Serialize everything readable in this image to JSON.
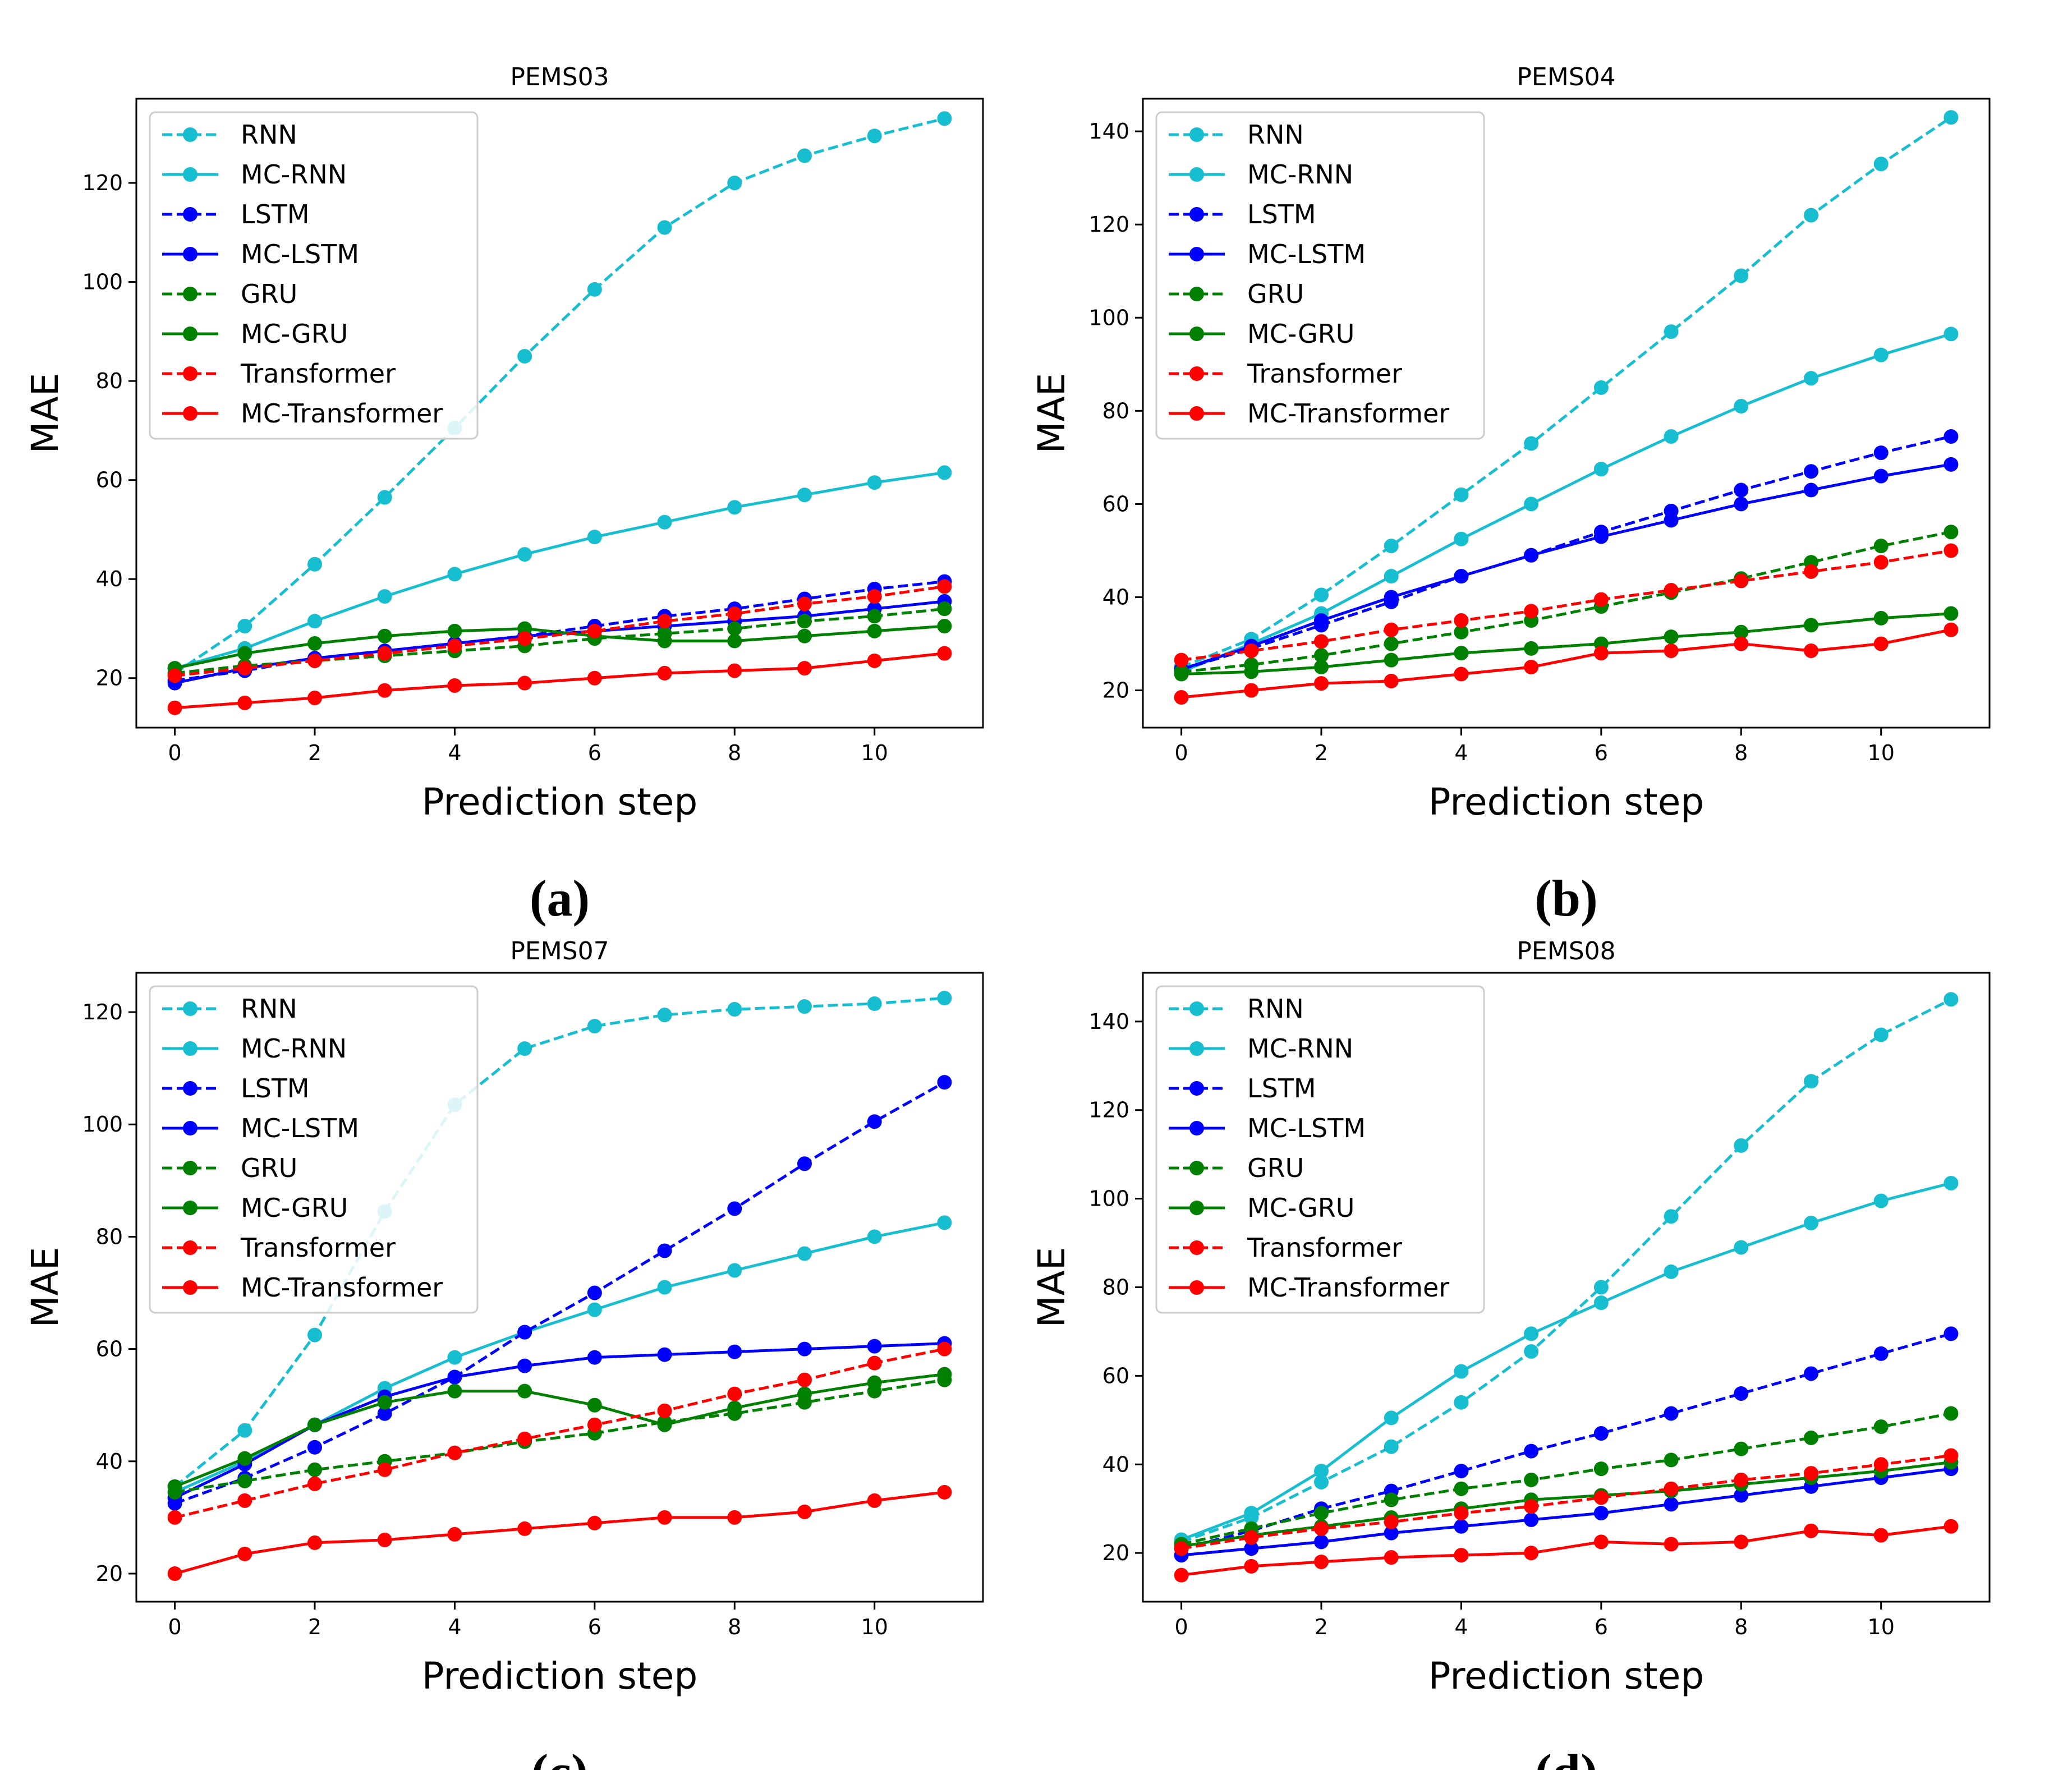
{
  "figure": {
    "captions": [
      "(a)",
      "(b)",
      "(c)",
      "(d)"
    ]
  },
  "styles": {
    "RNN": {
      "color": "#17becf",
      "dashed": true
    },
    "MC-RNN": {
      "color": "#17becf",
      "dashed": false
    },
    "LSTM": {
      "color": "#0000ff",
      "dashed": true
    },
    "MC-LSTM": {
      "color": "#0000ff",
      "dashed": false
    },
    "GRU": {
      "color": "#008000",
      "dashed": true
    },
    "MC-GRU": {
      "color": "#008000",
      "dashed": false
    },
    "Transformer": {
      "color": "#ff0000",
      "dashed": true
    },
    "MC-Transformer": {
      "color": "#ff0000",
      "dashed": false
    }
  },
  "chart_data": [
    {
      "type": "line",
      "title": "PEMS03",
      "xlabel": "Prediction step",
      "ylabel": "MAE",
      "caption": "(a)",
      "legend_position": "top-left",
      "x": [
        0,
        1,
        2,
        3,
        4,
        5,
        6,
        7,
        8,
        9,
        10,
        11
      ],
      "xlim": [
        -0.55,
        11.55
      ],
      "ylim": [
        10,
        137
      ],
      "xticks": [
        0,
        2,
        4,
        6,
        8,
        10
      ],
      "yticks": [
        20,
        40,
        60,
        80,
        100,
        120
      ],
      "series": [
        {
          "name": "RNN",
          "values": [
            21,
            30.5,
            43,
            56.5,
            70.5,
            85,
            98.5,
            111,
            120,
            125.5,
            129.5,
            133
          ]
        },
        {
          "name": "MC-RNN",
          "values": [
            22,
            26,
            31.5,
            36.5,
            41,
            45,
            48.5,
            51.5,
            54.5,
            57,
            59.5,
            61.5
          ]
        },
        {
          "name": "LSTM",
          "values": [
            19.5,
            21.5,
            24,
            25.5,
            27,
            28.5,
            30.5,
            32.5,
            34,
            36,
            38,
            39.5
          ]
        },
        {
          "name": "MC-LSTM",
          "values": [
            19,
            22,
            24,
            25.5,
            27,
            28.5,
            29.5,
            30.5,
            31.5,
            32.5,
            34,
            35.5
          ]
        },
        {
          "name": "GRU",
          "values": [
            21,
            22.5,
            23.5,
            24.5,
            25.5,
            26.5,
            28,
            29,
            30,
            31.5,
            32.5,
            34
          ]
        },
        {
          "name": "MC-GRU",
          "values": [
            22,
            25,
            27,
            28.5,
            29.5,
            30,
            28.5,
            27.5,
            27.5,
            28.5,
            29.5,
            30.5
          ]
        },
        {
          "name": "Transformer",
          "values": [
            20.5,
            22,
            23.5,
            25,
            26.5,
            28,
            29.5,
            31.5,
            33,
            35,
            36.5,
            38.5
          ]
        },
        {
          "name": "MC-Transformer",
          "values": [
            14,
            15,
            16,
            17.5,
            18.5,
            19,
            20,
            21,
            21.5,
            22,
            23.5,
            25
          ]
        }
      ]
    },
    {
      "type": "line",
      "title": "PEMS04",
      "xlabel": "Prediction step",
      "ylabel": "MAE",
      "caption": "(b)",
      "legend_position": "top-left",
      "x": [
        0,
        1,
        2,
        3,
        4,
        5,
        6,
        7,
        8,
        9,
        10,
        11
      ],
      "xlim": [
        -0.55,
        11.55
      ],
      "ylim": [
        12,
        147
      ],
      "xticks": [
        0,
        2,
        4,
        6,
        8,
        10
      ],
      "yticks": [
        20,
        40,
        60,
        80,
        100,
        120,
        140
      ],
      "series": [
        {
          "name": "RNN",
          "values": [
            25,
            31,
            40.5,
            51,
            62,
            73,
            85,
            97,
            109,
            122,
            133,
            143
          ]
        },
        {
          "name": "MC-RNN",
          "values": [
            24,
            30,
            36.5,
            44.5,
            52.5,
            60,
            67.5,
            74.5,
            81,
            87,
            92,
            96.5
          ]
        },
        {
          "name": "LSTM",
          "values": [
            24.5,
            29,
            34,
            39,
            44.5,
            49,
            54,
            58.5,
            63,
            67,
            71,
            74.5
          ]
        },
        {
          "name": "MC-LSTM",
          "values": [
            24.5,
            29.5,
            35,
            40,
            44.5,
            49,
            53,
            56.5,
            60,
            63,
            66,
            68.5
          ]
        },
        {
          "name": "GRU",
          "values": [
            24,
            25.5,
            27.5,
            30,
            32.5,
            35,
            38,
            41,
            44,
            47.5,
            51,
            54
          ]
        },
        {
          "name": "MC-GRU",
          "values": [
            23.5,
            24,
            25,
            26.5,
            28,
            29,
            30,
            31.5,
            32.5,
            34,
            35.5,
            36.5
          ]
        },
        {
          "name": "Transformer",
          "values": [
            26.5,
            28.5,
            30.5,
            33,
            35,
            37,
            39.5,
            41.5,
            43.5,
            45.5,
            47.5,
            50
          ]
        },
        {
          "name": "MC-Transformer",
          "values": [
            18.5,
            20,
            21.5,
            22,
            23.5,
            25,
            28,
            28.5,
            30,
            28.5,
            30,
            33
          ]
        }
      ]
    },
    {
      "type": "line",
      "title": "PEMS07",
      "xlabel": "Prediction step",
      "ylabel": "MAE",
      "caption": "(c)",
      "legend_position": "top-left",
      "x": [
        0,
        1,
        2,
        3,
        4,
        5,
        6,
        7,
        8,
        9,
        10,
        11
      ],
      "xlim": [
        -0.55,
        11.55
      ],
      "ylim": [
        15,
        127
      ],
      "xticks": [
        0,
        2,
        4,
        6,
        8,
        10
      ],
      "yticks": [
        20,
        40,
        60,
        80,
        100,
        120
      ],
      "series": [
        {
          "name": "RNN",
          "values": [
            35.5,
            45.5,
            62.5,
            84.5,
            103.5,
            113.5,
            117.5,
            119.5,
            120.5,
            121,
            121.5,
            122.5
          ]
        },
        {
          "name": "MC-RNN",
          "values": [
            34.5,
            40,
            46.5,
            53,
            58.5,
            63,
            67,
            71,
            74,
            77,
            80,
            82.5
          ]
        },
        {
          "name": "LSTM",
          "values": [
            32.5,
            37,
            42.5,
            48.5,
            55,
            63,
            70,
            77.5,
            85,
            93,
            100.5,
            107.5
          ]
        },
        {
          "name": "MC-LSTM",
          "values": [
            33.5,
            39.5,
            46.5,
            51.5,
            55,
            57,
            58.5,
            59,
            59.5,
            60,
            60.5,
            61
          ]
        },
        {
          "name": "GRU",
          "values": [
            34.5,
            36.5,
            38.5,
            40,
            41.5,
            43.5,
            45,
            47,
            48.5,
            50.5,
            52.5,
            54.5
          ]
        },
        {
          "name": "MC-GRU",
          "values": [
            35.5,
            40.5,
            46.5,
            50.5,
            52.5,
            52.5,
            50,
            46.5,
            49.5,
            52,
            54,
            55.5
          ]
        },
        {
          "name": "Transformer",
          "values": [
            30,
            33,
            36,
            38.5,
            41.5,
            44,
            46.5,
            49,
            52,
            54.5,
            57.5,
            60
          ]
        },
        {
          "name": "MC-Transformer",
          "values": [
            20,
            23.5,
            25.5,
            26,
            27,
            28,
            29,
            30,
            30,
            31,
            33,
            34.5
          ]
        }
      ]
    },
    {
      "type": "line",
      "title": "PEMS08",
      "xlabel": "Prediction step",
      "ylabel": "MAE",
      "caption": "(d)",
      "legend_position": "top-left",
      "x": [
        0,
        1,
        2,
        3,
        4,
        5,
        6,
        7,
        8,
        9,
        10,
        11
      ],
      "xlim": [
        -0.55,
        11.55
      ],
      "ylim": [
        9,
        151
      ],
      "xticks": [
        0,
        2,
        4,
        6,
        8,
        10
      ],
      "yticks": [
        20,
        40,
        60,
        80,
        100,
        120,
        140
      ],
      "series": [
        {
          "name": "RNN",
          "values": [
            22.5,
            28,
            36,
            44,
            54,
            65.5,
            80,
            96,
            112,
            126.5,
            137,
            145
          ]
        },
        {
          "name": "MC-RNN",
          "values": [
            23,
            29,
            38.5,
            50.5,
            61,
            69.5,
            76.5,
            83.5,
            89,
            94.5,
            99.5,
            103.5
          ]
        },
        {
          "name": "LSTM",
          "values": [
            21,
            25,
            30,
            34,
            38.5,
            43,
            47,
            51.5,
            56,
            60.5,
            65,
            69.5
          ]
        },
        {
          "name": "MC-LSTM",
          "values": [
            19.5,
            21,
            22.5,
            24.5,
            26,
            27.5,
            29,
            31,
            33,
            35,
            37,
            39
          ]
        },
        {
          "name": "GRU",
          "values": [
            22,
            25.5,
            29,
            32,
            34.5,
            36.5,
            39,
            41,
            43.5,
            46,
            48.5,
            51.5
          ]
        },
        {
          "name": "MC-GRU",
          "values": [
            21.5,
            24,
            26,
            28,
            30,
            32,
            33,
            34,
            35.5,
            37,
            38.5,
            40.5
          ]
        },
        {
          "name": "Transformer",
          "values": [
            21,
            23.5,
            25.5,
            27,
            29,
            30.5,
            32.5,
            34.5,
            36.5,
            38,
            40,
            42
          ]
        },
        {
          "name": "MC-Transformer",
          "values": [
            15,
            17,
            18,
            19,
            19.5,
            20,
            22.5,
            22,
            22.5,
            25,
            24,
            26
          ]
        }
      ]
    }
  ]
}
